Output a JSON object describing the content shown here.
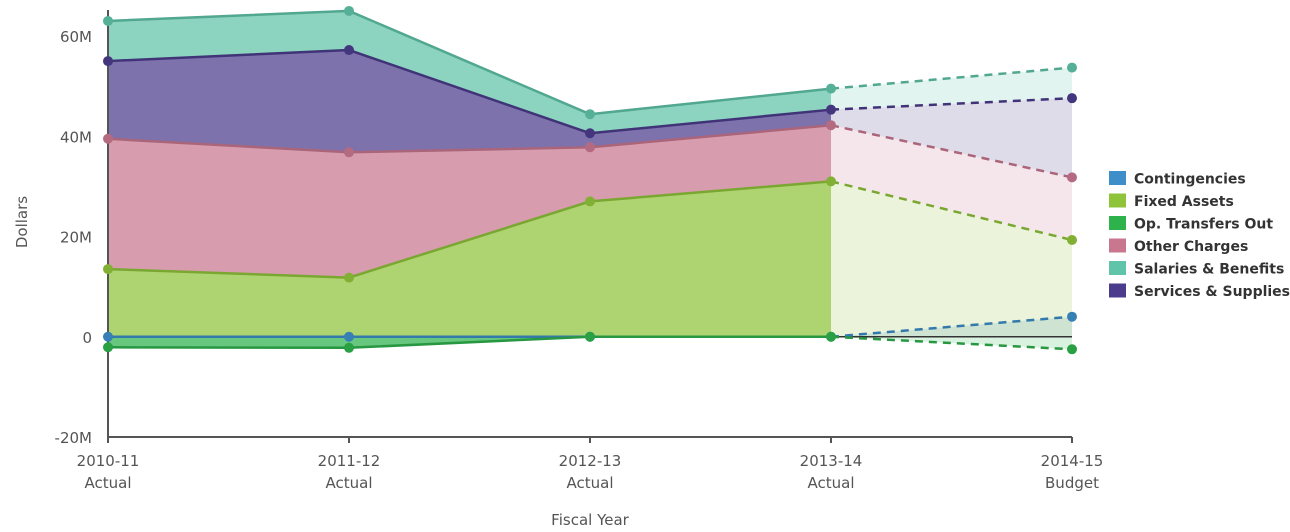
{
  "chart_data": {
    "type": "area",
    "stacked": true,
    "x": [
      {
        "line1": "2010-11",
        "line2": "Actual"
      },
      {
        "line1": "2011-12",
        "line2": "Actual"
      },
      {
        "line1": "2012-13",
        "line2": "Actual"
      },
      {
        "line1": "2013-14",
        "line2": "Actual"
      },
      {
        "line1": "2014-15",
        "line2": "Budget"
      }
    ],
    "xlabel": "Fiscal Year",
    "ylabel": "Dollars",
    "ylim": [
      -20000000,
      60000000
    ],
    "yticks": [
      {
        "value": -20000000,
        "label": "-20M"
      },
      {
        "value": 0,
        "label": "0"
      },
      {
        "value": 20000000,
        "label": "20M"
      },
      {
        "value": 40000000,
        "label": "40M"
      },
      {
        "value": 60000000,
        "label": "60M"
      }
    ],
    "projected_from_index": 3,
    "legend_position": "right",
    "series": [
      {
        "name": "Contingencies",
        "color": "#3d8ec9",
        "values": [
          0,
          0,
          0,
          0,
          4000000
        ]
      },
      {
        "name": "Fixed Assets",
        "color": "#8fc43a",
        "values": [
          13500000,
          11800000,
          27000000,
          31000000,
          19300000
        ]
      },
      {
        "name": "Op. Transfers Out",
        "color": "#2eb24c",
        "values": [
          -2100000,
          -2200000,
          0,
          0,
          -2500000
        ]
      },
      {
        "name": "Other Charges",
        "color": "#c8778f",
        "values": [
          26000000,
          25000000,
          10800000,
          11200000,
          12500000
        ]
      },
      {
        "name": "Salaries & Benefits",
        "color": "#5fc4a8",
        "values": [
          8000000,
          7800000,
          3800000,
          4200000,
          6100000
        ]
      },
      {
        "name": "Services & Supplies",
        "color": "#4b3c8c",
        "values": [
          15500000,
          20400000,
          2800000,
          3100000,
          15800000
        ]
      }
    ],
    "stack_order": [
      "Fixed Assets",
      "Other Charges",
      "Services & Supplies",
      "Salaries & Benefits"
    ],
    "negative_order": [
      "Op. Transfers Out"
    ],
    "standalone": [
      "Contingencies"
    ]
  }
}
